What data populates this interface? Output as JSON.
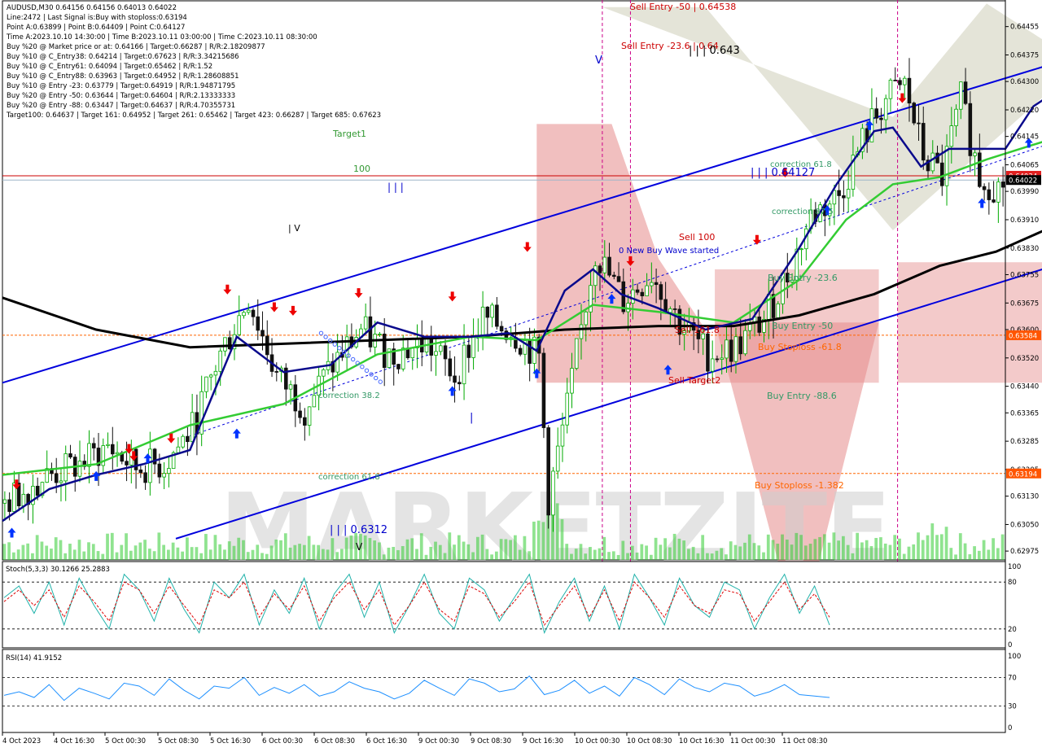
{
  "header": {
    "lines": [
      "AUDUSD,M30  0.64156 0.64156 0.64013 0.64022",
      "Line:2472 | Last Signal is:Buy with stoploss:0.63194",
      "Point A:0.63899 | Point B:0.64409 | Point C:0.64127",
      "Time A:2023.10.10 14:30:00 | Time B:2023.10.11 03:00:00 | Time C:2023.10.11 08:30:00",
      "Buy %20 @ Market price or at: 0.64166 | Target:0.66287 | R/R:2.18209877",
      "Buy %10 @ C_Entry38: 0.64214 | Target:0.67623 | R/R:3.34215686",
      "Buy %10 @ C_Entry61: 0.64094 | Target:0.65462 | R/R:1.52",
      "Buy %10 @ C_Entry88: 0.63963 | Target:0.64952 | R/R:1.28608851",
      "Buy %10 @ Entry -23: 0.63779 | Target:0.64919 | R/R:1.94871795",
      "Buy %20 @ Entry -50: 0.63644 | Target:0.64604 | R/R:2.13333333",
      "Buy %20 @ Entry -88: 0.63447 | Target:0.64637 | R/R:4.70355731",
      "Target100: 0.64637 | Target 161: 0.64952 | Target 261: 0.65462 | Target 423: 0.66287 | Target 685: 0.67623"
    ]
  },
  "annotations": {
    "sell_entry_50": "Sell Entry -50 | 0.64538",
    "sell_entry_23": "Sell Entry -23.6 | 0.64",
    "wave_label_top": "| | | 0.643",
    "target1": "Target1",
    "label_100": "100",
    "wave_iii_top": "| | |",
    "wave_iv": "| V",
    "wave_v": "V",
    "correction_618_right": "correction 61.8",
    "wave_point_c": "| | | 0.64127",
    "correction_875": "correction 87.5",
    "sell_100": "Sell 100",
    "new_wave": "0 New Buy Wave started",
    "buy_entry_236": "Buy Entry -23.6",
    "buy_entry_50": "Buy Entry -50",
    "sell_1618": "Sell 161.8",
    "buy_stoploss_618": "Buy Stoploss -61.8",
    "sell_target2": "Sell Target2",
    "buy_entry_886": "Buy Entry -88.6",
    "correction_382": "correction 38.2",
    "wave_i": "| ",
    "correction_618_left": "correction 61.8",
    "buy_stoploss_1382": "Buy Stoploss -1.382",
    "wave_bottom": "| | | 0.6312",
    "wave_v_bottom": "V"
  },
  "price_axis": {
    "ticks": [
      "0.64455",
      "0.64375",
      "0.64300",
      "0.64220",
      "0.64145",
      "0.64065",
      "0.63990",
      "0.63910",
      "0.63830",
      "0.63755",
      "0.63675",
      "0.63600",
      "0.63520",
      "0.63440",
      "0.63365",
      "0.63285",
      "0.63205",
      "0.63130",
      "0.63050",
      "0.62975"
    ],
    "current_price": "0.64022",
    "red_line_price": "0.64034",
    "orange_line_1": "0.63584",
    "orange_line_2": "0.63194"
  },
  "stoch": {
    "label": "Stoch(5,3,3) 30.1266 25.2883",
    "ticks": [
      "100",
      "80",
      "20",
      "0"
    ]
  },
  "rsi": {
    "label": "RSI(14) 41.9152",
    "ticks": [
      "100",
      "70",
      "30",
      "0"
    ]
  },
  "time_axis": {
    "labels": [
      "4 Oct 2023",
      "4 Oct 16:30",
      "5 Oct 00:30",
      "5 Oct 08:30",
      "5 Oct 16:30",
      "6 Oct 00:30",
      "6 Oct 08:30",
      "6 Oct 16:30",
      "9 Oct 00:30",
      "9 Oct 08:30",
      "9 Oct 16:30",
      "10 Oct 00:30",
      "10 Oct 08:30",
      "10 Oct 16:30",
      "11 Oct 00:30",
      "11 Oct 08:30"
    ]
  },
  "watermark": "MARKETZITE",
  "colors": {
    "bull": "#00aa00",
    "bear": "#111111",
    "blue_ma": "#0a0a8c",
    "green_ma": "#33cc33",
    "black_ma": "#000000",
    "channel": "#0000dd",
    "sell_zone": "#e58a8a",
    "orange": "#ff6600",
    "stoch_main": "#20b2aa",
    "stoch_signal": "#dd0000",
    "rsi": "#1e90ff"
  },
  "chart_data": {
    "type": "candlestick",
    "symbol": "AUDUSD",
    "timeframe": "M30",
    "ylim": [
      0.6295,
      0.6453
    ],
    "x_count": 214,
    "close_path": [
      [
        0,
        0.6311
      ],
      [
        8,
        0.6318
      ],
      [
        16,
        0.6322
      ],
      [
        22,
        0.6327
      ],
      [
        28,
        0.6321
      ],
      [
        34,
        0.6322
      ],
      [
        40,
        0.6332
      ],
      [
        46,
        0.6353
      ],
      [
        52,
        0.6369
      ],
      [
        58,
        0.6347
      ],
      [
        64,
        0.6338
      ],
      [
        70,
        0.635
      ],
      [
        76,
        0.636
      ],
      [
        82,
        0.6353
      ],
      [
        90,
        0.6356
      ],
      [
        96,
        0.6347
      ],
      [
        102,
        0.6363
      ],
      [
        108,
        0.636
      ],
      [
        114,
        0.6352
      ],
      [
        116,
        0.6312
      ],
      [
        120,
        0.6338
      ],
      [
        126,
        0.6382
      ],
      [
        132,
        0.6368
      ],
      [
        138,
        0.6376
      ],
      [
        144,
        0.6362
      ],
      [
        150,
        0.6353
      ],
      [
        156,
        0.6355
      ],
      [
        162,
        0.6363
      ],
      [
        168,
        0.6378
      ],
      [
        172,
        0.6392
      ],
      [
        178,
        0.6398
      ],
      [
        184,
        0.6416
      ],
      [
        188,
        0.6425
      ],
      [
        192,
        0.6429
      ],
      [
        196,
        0.6409
      ],
      [
        200,
        0.6403
      ],
      [
        204,
        0.6425
      ],
      [
        208,
        0.6403
      ],
      [
        212,
        0.64
      ],
      [
        216,
        0.6406
      ],
      [
        220,
        0.6417
      ],
      [
        226,
        0.6428
      ],
      [
        232,
        0.6433
      ],
      [
        236,
        0.6441
      ],
      [
        240,
        0.6428
      ],
      [
        246,
        0.6418
      ],
      [
        252,
        0.6423
      ],
      [
        258,
        0.6417
      ],
      [
        262,
        0.6411
      ],
      [
        266,
        0.6402
      ]
    ],
    "blue_ma": [
      [
        0,
        0.6306
      ],
      [
        10,
        0.6315
      ],
      [
        20,
        0.6319
      ],
      [
        30,
        0.6322
      ],
      [
        40,
        0.6326
      ],
      [
        50,
        0.6358
      ],
      [
        60,
        0.6348
      ],
      [
        70,
        0.635
      ],
      [
        80,
        0.6362
      ],
      [
        90,
        0.6358
      ],
      [
        100,
        0.6358
      ],
      [
        108,
        0.6359
      ],
      [
        114,
        0.6354
      ],
      [
        120,
        0.6371
      ],
      [
        126,
        0.6377
      ],
      [
        132,
        0.637
      ],
      [
        140,
        0.6366
      ],
      [
        150,
        0.636
      ],
      [
        160,
        0.6363
      ],
      [
        170,
        0.6383
      ],
      [
        178,
        0.6401
      ],
      [
        186,
        0.6416
      ],
      [
        190,
        0.6417
      ],
      [
        196,
        0.6406
      ],
      [
        202,
        0.6411
      ],
      [
        208,
        0.6411
      ],
      [
        214,
        0.6411
      ],
      [
        220,
        0.6423
      ],
      [
        228,
        0.643
      ],
      [
        236,
        0.6433
      ],
      [
        246,
        0.6427
      ],
      [
        256,
        0.6425
      ],
      [
        266,
        0.6422
      ]
    ],
    "green_ma": [
      [
        0,
        0.6319
      ],
      [
        20,
        0.6322
      ],
      [
        40,
        0.6333
      ],
      [
        60,
        0.6339
      ],
      [
        80,
        0.6353
      ],
      [
        100,
        0.6358
      ],
      [
        114,
        0.6357
      ],
      [
        126,
        0.6367
      ],
      [
        140,
        0.6365
      ],
      [
        156,
        0.6362
      ],
      [
        170,
        0.6374
      ],
      [
        180,
        0.6391
      ],
      [
        190,
        0.6401
      ],
      [
        200,
        0.6403
      ],
      [
        210,
        0.6408
      ],
      [
        222,
        0.6413
      ],
      [
        232,
        0.642
      ],
      [
        240,
        0.6423
      ],
      [
        252,
        0.6424
      ],
      [
        266,
        0.6422
      ]
    ],
    "black_ma": [
      [
        0,
        0.6369
      ],
      [
        20,
        0.636
      ],
      [
        40,
        0.6355
      ],
      [
        60,
        0.6356
      ],
      [
        80,
        0.6357
      ],
      [
        100,
        0.6358
      ],
      [
        120,
        0.636
      ],
      [
        140,
        0.6361
      ],
      [
        156,
        0.6361
      ],
      [
        170,
        0.6364
      ],
      [
        186,
        0.637
      ],
      [
        200,
        0.6378
      ],
      [
        212,
        0.6382
      ],
      [
        224,
        0.6389
      ],
      [
        236,
        0.6394
      ],
      [
        250,
        0.6397
      ],
      [
        266,
        0.6398
      ]
    ],
    "channel": {
      "upper": [
        [
          0,
          0.6345
        ],
        [
          264,
          0.6451
        ]
      ],
      "lower": [
        [
          37,
          0.6301
        ],
        [
          307,
          0.6412
        ]
      ],
      "mid_dotted": [
        [
          40,
          0.633
        ],
        [
          307,
          0.645
        ]
      ]
    },
    "levels": {
      "current": 0.64022,
      "red_line": 0.64034,
      "buy_stoploss_618": 0.63584,
      "buy_stoploss_1382": 0.63194
    },
    "stoch_main": [
      60,
      75,
      40,
      80,
      25,
      85,
      50,
      20,
      90,
      70,
      30,
      85,
      45,
      15,
      80,
      60,
      90,
      25,
      70,
      40,
      85,
      20,
      65,
      90,
      35,
      80,
      15,
      50,
      90,
      40,
      20,
      85,
      70,
      30,
      60,
      90,
      15,
      55,
      85,
      30,
      75,
      20,
      90,
      60,
      25,
      85,
      50,
      35,
      80,
      70,
      20,
      60,
      90,
      40,
      75,
      25
    ],
    "stoch_signal": [
      55,
      70,
      50,
      70,
      35,
      75,
      55,
      30,
      80,
      70,
      40,
      75,
      50,
      25,
      70,
      60,
      80,
      35,
      65,
      45,
      75,
      30,
      60,
      80,
      45,
      70,
      25,
      50,
      80,
      45,
      30,
      75,
      65,
      35,
      55,
      80,
      25,
      50,
      75,
      35,
      70,
      30,
      80,
      60,
      35,
      75,
      50,
      40,
      70,
      65,
      30,
      55,
      80,
      45,
      65,
      35
    ],
    "rsi_values": [
      45,
      50,
      42,
      60,
      38,
      55,
      48,
      40,
      62,
      58,
      45,
      68,
      52,
      40,
      58,
      55,
      70,
      45,
      56,
      48,
      60,
      44,
      50,
      64,
      55,
      50,
      40,
      48,
      66,
      55,
      45,
      68,
      62,
      50,
      54,
      72,
      46,
      52,
      66,
      48,
      58,
      44,
      70,
      60,
      46,
      68,
      56,
      50,
      62,
      58,
      44,
      50,
      60,
      46,
      44,
      42
    ]
  }
}
